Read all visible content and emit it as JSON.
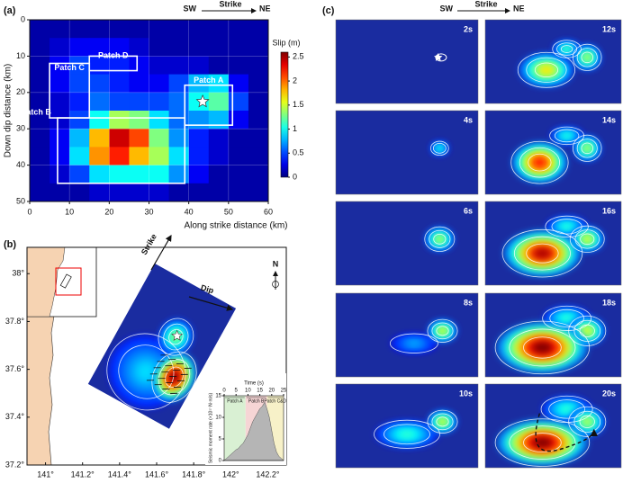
{
  "chart_data": [
    {
      "type": "heatmap",
      "panel": "(a)",
      "header": {
        "left": "SW",
        "middle": "Strike",
        "right": "NE"
      },
      "x_label": "Along strike distance (km)",
      "y_label": "Down dip distance (km)",
      "xlim": [
        0,
        60
      ],
      "ylim": [
        0,
        50
      ],
      "y_inverted": true,
      "xticks": [
        0,
        10,
        20,
        30,
        40,
        50,
        60
      ],
      "yticks": [
        0,
        10,
        20,
        30,
        40,
        50
      ],
      "grid": true,
      "colorbar": {
        "label": "Slip (m)",
        "lim": [
          0,
          2.6
        ],
        "ticks": [
          0,
          0.5,
          1,
          1.5,
          2,
          2.5
        ]
      },
      "values": [
        [
          0.1,
          0.1,
          0.1,
          0.1,
          0.1,
          0.1,
          0.1,
          0.1,
          0.1,
          0.1,
          0.1,
          0.1
        ],
        [
          0.1,
          0.2,
          0.3,
          0.3,
          0.3,
          0.2,
          0.1,
          0.1,
          0.1,
          0.1,
          0.1,
          0.1
        ],
        [
          0.1,
          0.3,
          0.5,
          0.4,
          0.4,
          0.3,
          0.2,
          0.2,
          0.2,
          0.1,
          0.1,
          0.1
        ],
        [
          0.1,
          0.3,
          0.5,
          0.5,
          0.4,
          0.3,
          0.3,
          0.5,
          0.8,
          0.9,
          0.3,
          0.1
        ],
        [
          0.1,
          0.2,
          0.4,
          0.6,
          0.5,
          0.5,
          0.5,
          0.6,
          1.0,
          1.2,
          0.5,
          0.1
        ],
        [
          0.1,
          0.2,
          0.5,
          1.0,
          1.4,
          1.3,
          0.9,
          0.6,
          0.7,
          0.8,
          0.3,
          0.1
        ],
        [
          0.1,
          0.3,
          0.8,
          1.8,
          2.4,
          2.1,
          1.3,
          0.7,
          0.4,
          0.2,
          0.1,
          0.1
        ],
        [
          0.1,
          0.3,
          0.9,
          1.9,
          2.2,
          1.8,
          1.4,
          0.9,
          0.4,
          0.2,
          0.1,
          0.1
        ],
        [
          0.1,
          0.2,
          0.5,
          0.9,
          1.0,
          1.0,
          1.0,
          0.7,
          0.3,
          0.1,
          0.1,
          0.1
        ],
        [
          0.1,
          0.1,
          0.1,
          0.2,
          0.2,
          0.2,
          0.2,
          0.1,
          0.1,
          0.1,
          0.1,
          0.1
        ]
      ],
      "patches": [
        {
          "label": "Patch A",
          "x": [
            39,
            51
          ],
          "y": [
            18,
            29
          ]
        },
        {
          "label": "Patch B",
          "x": [
            7,
            39
          ],
          "y": [
            27,
            45
          ]
        },
        {
          "label": "Patch C",
          "x": [
            5,
            15
          ],
          "y": [
            12,
            27
          ]
        },
        {
          "label": "Patch D",
          "x": [
            15,
            27
          ],
          "y": [
            10,
            14
          ]
        }
      ],
      "hypocenter": [
        43.5,
        22.5
      ]
    },
    {
      "type": "map",
      "panel": "(b)",
      "xlim": [
        140.9,
        142.3
      ],
      "ylim": [
        37.2,
        38.11
      ],
      "xticks": [
        {
          "value": 141,
          "label": "141°"
        },
        {
          "value": 141.2,
          "label": "141.2°"
        },
        {
          "value": 141.4,
          "label": "141.4°"
        },
        {
          "value": 141.6,
          "label": "141.6°"
        },
        {
          "value": 141.8,
          "label": "141.8°"
        },
        {
          "value": 142,
          "label": "142°"
        },
        {
          "value": 142.2,
          "label": "142.2°"
        }
      ],
      "yticks": [
        {
          "value": 37.2,
          "label": "37.2°"
        },
        {
          "value": 37.4,
          "label": "37.4°"
        },
        {
          "value": 37.6,
          "label": "37.6°"
        },
        {
          "value": 37.8,
          "label": "37.8°"
        },
        {
          "value": 38,
          "label": "38°"
        }
      ],
      "labels": {
        "strike": "Strike",
        "dip": "Dip",
        "north": "N"
      },
      "hypocenter": [
        141.71,
        37.74
      ]
    },
    {
      "type": "area",
      "x_label": "Time (s)",
      "y_label": "Seismic moment rate (×10¹⁷ N·m/s)",
      "xlim": [
        0,
        25
      ],
      "ylim": [
        0,
        15
      ],
      "xticks": [
        0,
        5,
        10,
        15,
        20,
        25
      ],
      "yticks": [
        0,
        5,
        10,
        15
      ],
      "color": "#b5b5b5",
      "x": [
        0,
        1,
        2,
        3,
        4,
        5,
        6,
        7,
        8,
        9,
        10,
        11,
        12,
        13,
        14,
        15,
        16,
        17,
        18,
        19,
        20,
        21,
        22,
        23,
        24,
        25
      ],
      "values": [
        0,
        0.5,
        1,
        1.5,
        2,
        2.5,
        2.8,
        3.5,
        4,
        5,
        6,
        7.5,
        9,
        10,
        11,
        12,
        12.5,
        13.5,
        12,
        10,
        7,
        4,
        2,
        1,
        0.5,
        0
      ],
      "phases": [
        {
          "label": "Patch A",
          "range": [
            0,
            9
          ],
          "color": "#d9f0d3"
        },
        {
          "label": "Patch B",
          "range": [
            9,
            18
          ],
          "color": "#f6d5d5"
        },
        {
          "label": "Patch C&D",
          "range": [
            18,
            25
          ],
          "color": "#f7f1c8"
        }
      ]
    },
    {
      "type": "snapshots",
      "panel": "(c)",
      "header": {
        "left": "SW",
        "middle": "Strike",
        "right": "NE"
      },
      "frames": [
        "2s",
        "4s",
        "6s",
        "8s",
        "10s",
        "12s",
        "14s",
        "16s",
        "18s",
        "20s"
      ]
    }
  ]
}
